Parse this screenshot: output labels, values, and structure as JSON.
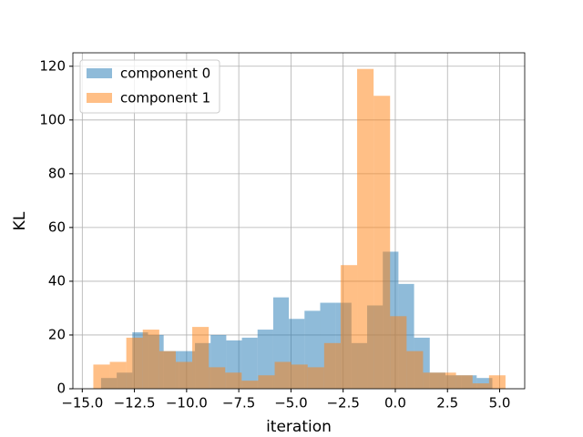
{
  "chart_data": {
    "type": "histogram",
    "xlabel": "iteration",
    "ylabel": "KL",
    "series": [
      {
        "name": "component 0",
        "color": "#1f77b4",
        "bins": [
          -14.1,
          -13.35,
          -12.6,
          -11.85,
          -11.1,
          -10.35,
          -9.6,
          -8.85,
          -8.1,
          -7.35,
          -6.6,
          -5.85,
          -5.1,
          -4.35,
          -3.6,
          -2.85,
          -2.1,
          -1.35,
          -0.6,
          0.15,
          0.9,
          1.65,
          2.4,
          3.15,
          3.9,
          4.65
        ],
        "values": [
          4,
          6,
          21,
          20,
          14,
          14,
          17,
          20,
          18,
          19,
          22,
          34,
          26,
          29,
          32,
          32,
          17,
          31,
          51,
          39,
          19,
          6,
          5,
          5,
          4
        ]
      },
      {
        "name": "component 1",
        "color": "#ff7f0e",
        "bins": [
          -14.47,
          -13.68,
          -12.89,
          -12.1,
          -11.31,
          -10.52,
          -9.73,
          -8.94,
          -8.15,
          -7.36,
          -6.57,
          -5.78,
          -4.99,
          -4.2,
          -3.41,
          -2.62,
          -1.83,
          -1.04,
          -0.25,
          0.54,
          1.33,
          2.12,
          2.91,
          3.7,
          4.49,
          5.28
        ],
        "values": [
          9,
          10,
          19,
          22,
          14,
          10,
          23,
          8,
          6,
          3,
          5,
          10,
          9,
          8,
          17,
          46,
          119,
          109,
          27,
          14,
          6,
          6,
          5,
          2,
          5
        ]
      }
    ],
    "alpha": 0.5,
    "xlim": [
      -15.45,
      6.2
    ],
    "xticks": [
      {
        "value": -15,
        "label": "−15.0"
      },
      {
        "value": -12.5,
        "label": "−12.5"
      },
      {
        "value": -10,
        "label": "−10.0"
      },
      {
        "value": -7.5,
        "label": "−7.5"
      },
      {
        "value": -5,
        "label": "−5.0"
      },
      {
        "value": -2.5,
        "label": "−2.5"
      },
      {
        "value": 0,
        "label": "0.0"
      },
      2.5,
      {
        "value": 5,
        "label": "5.0"
      }
    ],
    "ylim": [
      0,
      125
    ],
    "yticks": [
      0,
      20,
      40,
      60,
      80,
      100,
      120
    ],
    "grid": true,
    "legend": "upper left"
  }
}
